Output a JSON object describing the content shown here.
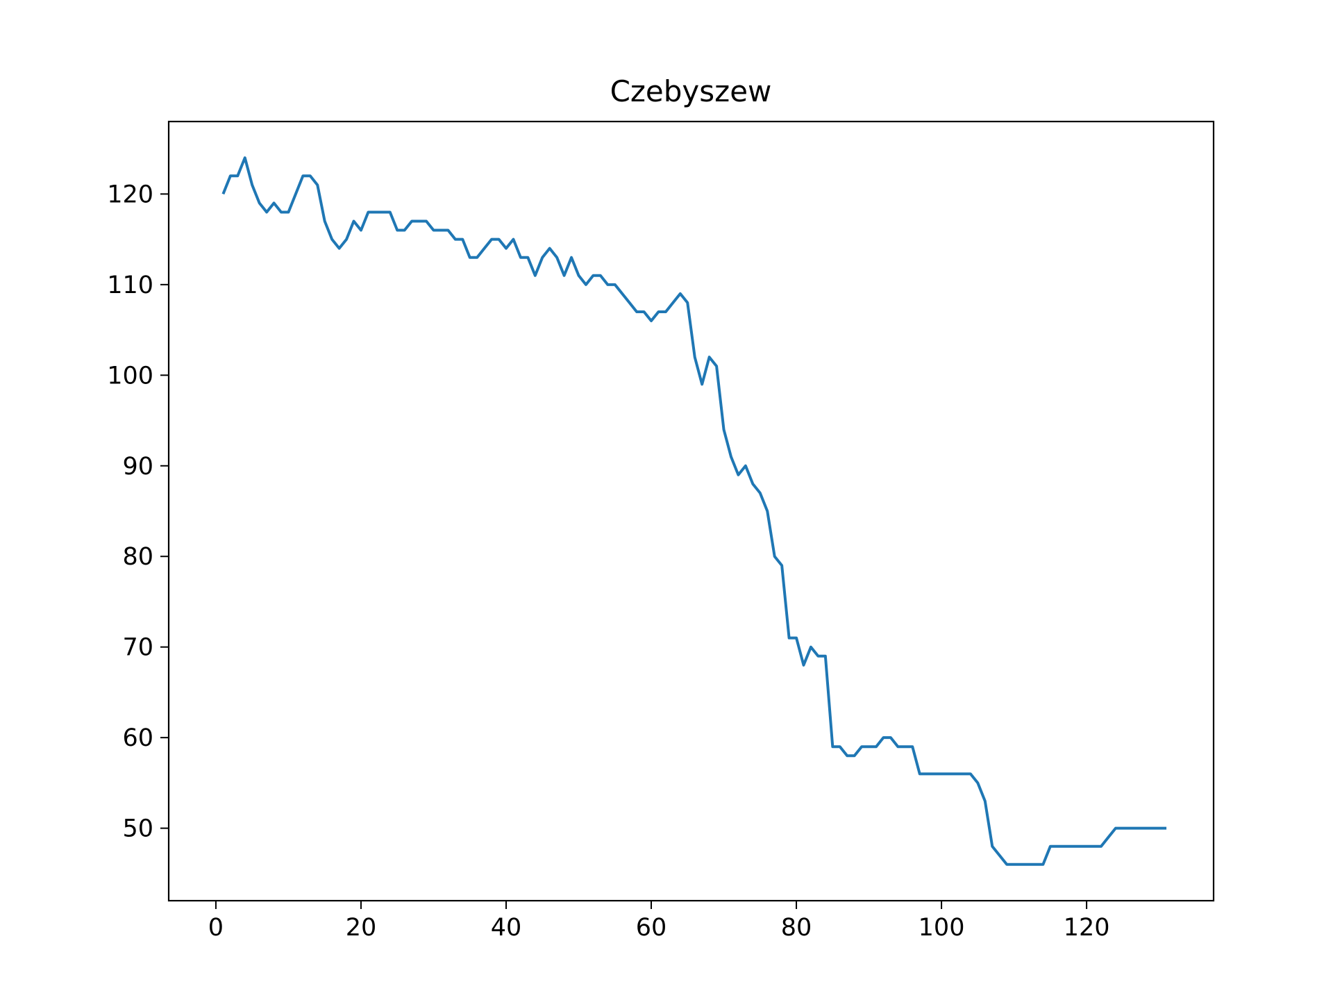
{
  "chart_data": {
    "type": "line",
    "title": "Czebyszew",
    "xlabel": "",
    "ylabel": "",
    "xlim": [
      -6.5,
      137.5
    ],
    "ylim": [
      42,
      128
    ],
    "grid": false,
    "line_color": "#1f77b4",
    "x_ticks": [
      0,
      20,
      40,
      60,
      80,
      100,
      120
    ],
    "y_ticks": [
      50,
      60,
      70,
      80,
      90,
      100,
      110,
      120
    ],
    "series": [
      {
        "x": [
          1,
          2,
          3,
          4,
          5,
          6,
          7,
          8,
          9,
          10,
          11,
          12,
          13,
          14,
          15,
          16,
          17,
          18,
          19,
          20,
          21,
          22,
          23,
          24,
          25,
          26,
          27,
          28,
          29,
          30,
          31,
          32,
          33,
          34,
          35,
          36,
          37,
          38,
          39,
          40,
          41,
          42,
          43,
          44,
          45,
          46,
          47,
          48,
          49,
          50,
          51,
          52,
          53,
          54,
          55,
          56,
          57,
          58,
          59,
          60,
          61,
          62,
          63,
          64,
          65,
          66,
          67,
          68,
          69,
          70,
          71,
          72,
          73,
          74,
          75,
          76,
          77,
          78,
          79,
          80,
          81,
          82,
          83,
          84,
          85,
          86,
          87,
          88,
          89,
          90,
          91,
          92,
          93,
          94,
          95,
          96,
          97,
          98,
          99,
          100,
          101,
          102,
          103,
          104,
          105,
          106,
          107,
          108,
          109,
          110,
          111,
          112,
          113,
          114,
          115,
          116,
          117,
          118,
          119,
          120,
          121,
          122,
          123,
          124,
          125,
          126,
          127,
          128,
          129,
          130,
          131
        ],
        "values": [
          120,
          122,
          122,
          124,
          121,
          119,
          118,
          119,
          118,
          118,
          120,
          122,
          122,
          121,
          117,
          115,
          114,
          115,
          117,
          116,
          118,
          118,
          118,
          118,
          116,
          116,
          117,
          117,
          117,
          116,
          116,
          116,
          115,
          115,
          113,
          113,
          114,
          115,
          115,
          114,
          115,
          113,
          113,
          111,
          113,
          114,
          113,
          111,
          113,
          111,
          110,
          111,
          111,
          110,
          110,
          109,
          108,
          107,
          107,
          106,
          107,
          107,
          108,
          109,
          108,
          102,
          99,
          102,
          101,
          94,
          91,
          89,
          90,
          88,
          87,
          85,
          80,
          79,
          71,
          71,
          68,
          70,
          69,
          69,
          59,
          59,
          58,
          58,
          59,
          59,
          59,
          60,
          60,
          59,
          59,
          59,
          56,
          56,
          56,
          56,
          56,
          56,
          56,
          56,
          55,
          53,
          48,
          47,
          46,
          46,
          46,
          46,
          46,
          46,
          48,
          48,
          48,
          48,
          48,
          48,
          48,
          48,
          49,
          50,
          50,
          50,
          50,
          50,
          50,
          50,
          50
        ]
      }
    ]
  }
}
